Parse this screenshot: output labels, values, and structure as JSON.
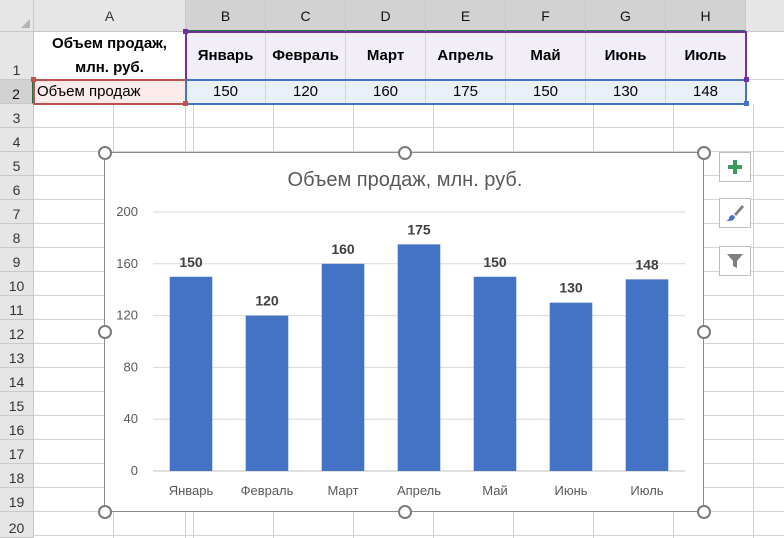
{
  "sheet": {
    "columns": [
      "A",
      "B",
      "C",
      "D",
      "E",
      "F",
      "G",
      "H"
    ],
    "rows": [
      "1",
      "2",
      "3",
      "4",
      "5",
      "6",
      "7",
      "8",
      "9",
      "10",
      "11",
      "12",
      "13",
      "14",
      "15",
      "16",
      "17",
      "18",
      "19",
      "20"
    ],
    "a1_line1": "Объем продаж,",
    "a1_line2": "млн. руб.",
    "a2": "Объем продаж",
    "months": [
      "Январь",
      "Февраль",
      "Март",
      "Апрель",
      "Май",
      "Июнь",
      "Июль"
    ],
    "values": [
      "150",
      "120",
      "160",
      "175",
      "150",
      "130",
      "148"
    ]
  },
  "chart_data": {
    "type": "bar",
    "title": "Объем продаж, млн. руб.",
    "categories": [
      "Январь",
      "Февраль",
      "Март",
      "Апрель",
      "Май",
      "Июнь",
      "Июль"
    ],
    "values": [
      150,
      120,
      160,
      175,
      150,
      130,
      148
    ],
    "yticks": [
      0,
      40,
      80,
      120,
      160,
      200
    ],
    "ylim": [
      0,
      200
    ],
    "xlabel": "",
    "ylabel": "",
    "grid": true,
    "data_labels": true,
    "legend": "none",
    "bar_color": "#4472c4"
  },
  "chart_buttons": {
    "add_elements": "plus-icon",
    "styles": "paintbrush-icon",
    "filters": "funnel-icon"
  },
  "colors": {
    "accent": "#217346",
    "header_border": "#7030a0",
    "row_border": "#4472c4",
    "label_border": "#c0504d"
  }
}
